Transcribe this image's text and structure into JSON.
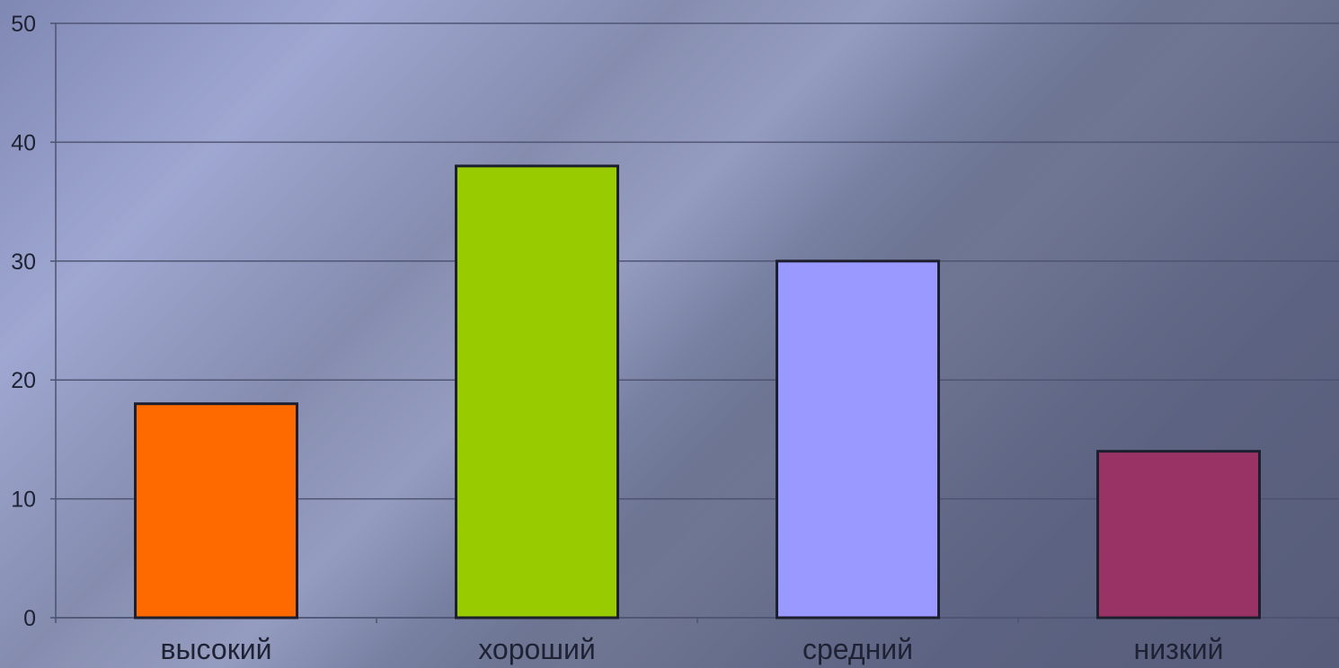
{
  "chart_data": {
    "type": "bar",
    "categories": [
      "высокий",
      "хороший",
      "средний",
      "низкий"
    ],
    "values": [
      18,
      38,
      30,
      14
    ],
    "title": "",
    "xlabel": "",
    "ylabel": "",
    "ylim": [
      0,
      50
    ],
    "yticks": [
      "0",
      "10",
      "20",
      "30",
      "40",
      "50"
    ],
    "grid": true,
    "legend": "none",
    "colors": [
      "#ff6a00",
      "#99cc00",
      "#9999ff",
      "#993366"
    ],
    "gridline_color": "#4c5270",
    "bar_border_color": "#1d1f2e"
  }
}
